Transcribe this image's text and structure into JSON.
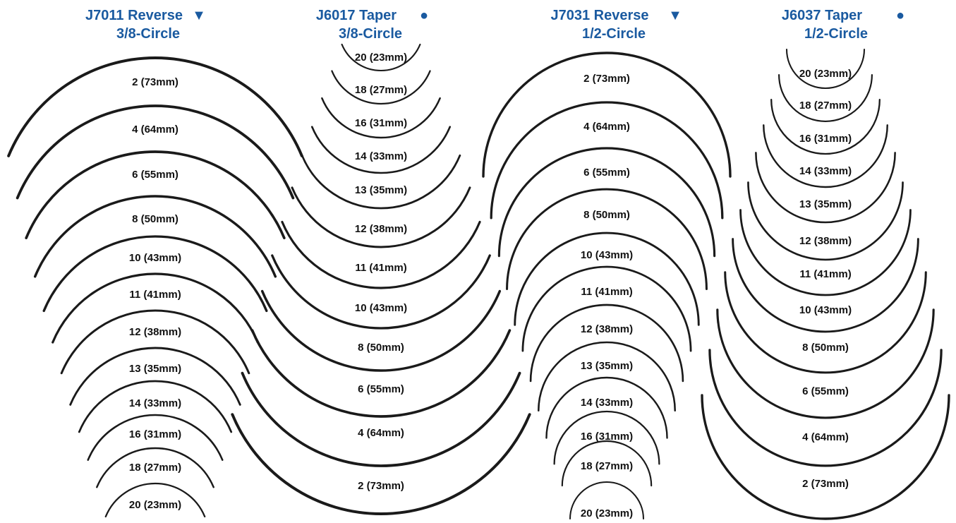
{
  "columns": [
    {
      "title": "J7011 Reverse",
      "symbol": "▼",
      "subtitle": "3/8-Circle",
      "needles": [
        "2 (73mm)",
        "4 (64mm)",
        "6 (55mm)",
        "8 (50mm)",
        "10 (43mm)",
        "11 (41mm)",
        "12 (38mm)",
        "13 (35mm)",
        "14 (33mm)",
        "16 (31mm)",
        "18 (27mm)",
        "20 (23mm)"
      ]
    },
    {
      "title": "J6017 Taper",
      "symbol": "●",
      "subtitle": "3/8-Circle",
      "needles": [
        "20 (23mm)",
        "18 (27mm)",
        "16 (31mm)",
        "14 (33mm)",
        "13 (35mm)",
        "12 (38mm)",
        "11 (41mm)",
        "10 (43mm)",
        "8 (50mm)",
        "6 (55mm)",
        "4 (64mm)",
        "2 (73mm)"
      ]
    },
    {
      "title": "J7031 Reverse",
      "symbol": "▼",
      "subtitle": "1/2-Circle",
      "needles": [
        "2 (73mm)",
        "4 (64mm)",
        "6 (55mm)",
        "8 (50mm)",
        "10 (43mm)",
        "11 (41mm)",
        "12 (38mm)",
        "13 (35mm)",
        "14 (33mm)",
        "16 (31mm)",
        "18 (27mm)",
        "20 (23mm)"
      ]
    },
    {
      "title": "J6037 Taper",
      "symbol": "●",
      "subtitle": "1/2-Circle",
      "needles": [
        "20 (23mm)",
        "18 (27mm)",
        "16 (31mm)",
        "14 (33mm)",
        "13 (35mm)",
        "12 (38mm)",
        "11 (41mm)",
        "10 (43mm)",
        "8 (50mm)",
        "6 (55mm)",
        "4 (64mm)",
        "2 (73mm)"
      ]
    }
  ]
}
